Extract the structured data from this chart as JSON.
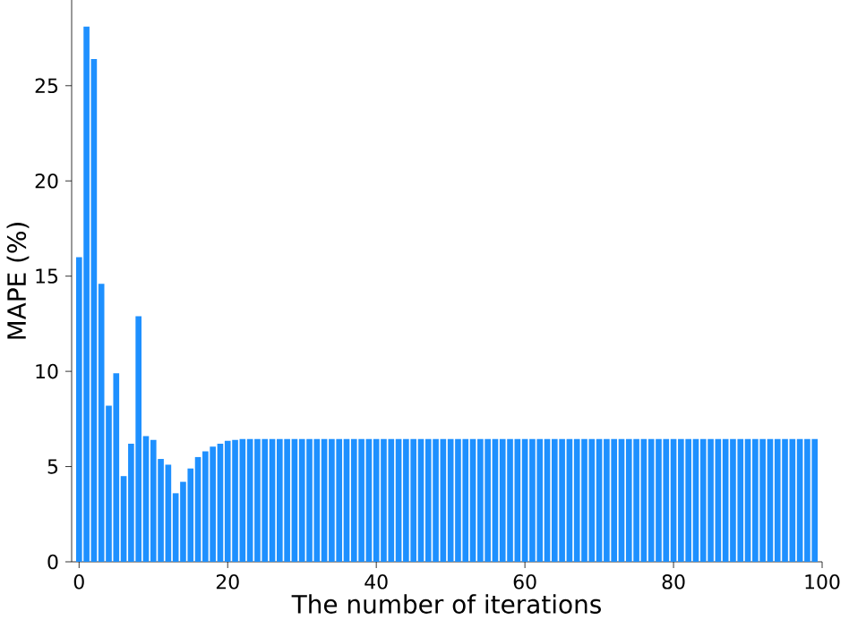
{
  "chart_data": {
    "type": "bar",
    "xlabel": "The number of iterations",
    "ylabel": "MAPE (%)",
    "color": "#1e90ff",
    "x": [
      0,
      1,
      2,
      3,
      4,
      5,
      6,
      7,
      8,
      9,
      10,
      11,
      12,
      13,
      14,
      15,
      16,
      17,
      18,
      19,
      20,
      21,
      22,
      23,
      24,
      25,
      26,
      27,
      28,
      29,
      30,
      31,
      32,
      33,
      34,
      35,
      36,
      37,
      38,
      39,
      40,
      41,
      42,
      43,
      44,
      45,
      46,
      47,
      48,
      49,
      50,
      51,
      52,
      53,
      54,
      55,
      56,
      57,
      58,
      59,
      60,
      61,
      62,
      63,
      64,
      65,
      66,
      67,
      68,
      69,
      70,
      71,
      72,
      73,
      74,
      75,
      76,
      77,
      78,
      79,
      80,
      81,
      82,
      83,
      84,
      85,
      86,
      87,
      88,
      89,
      90,
      91,
      92,
      93,
      94,
      95,
      96,
      97,
      98,
      99
    ],
    "values": [
      16.0,
      28.1,
      26.4,
      14.6,
      8.2,
      9.9,
      4.5,
      6.2,
      12.9,
      6.6,
      6.4,
      5.4,
      5.1,
      3.6,
      4.2,
      4.9,
      5.5,
      5.8,
      6.05,
      6.2,
      6.35,
      6.4,
      6.45,
      6.45,
      6.45,
      6.45,
      6.45,
      6.45,
      6.45,
      6.45,
      6.45,
      6.45,
      6.45,
      6.45,
      6.45,
      6.45,
      6.45,
      6.45,
      6.45,
      6.45,
      6.45,
      6.45,
      6.45,
      6.45,
      6.45,
      6.45,
      6.45,
      6.45,
      6.45,
      6.45,
      6.45,
      6.45,
      6.45,
      6.45,
      6.45,
      6.45,
      6.45,
      6.45,
      6.45,
      6.45,
      6.45,
      6.45,
      6.45,
      6.45,
      6.45,
      6.45,
      6.45,
      6.45,
      6.45,
      6.45,
      6.45,
      6.45,
      6.45,
      6.45,
      6.45,
      6.45,
      6.45,
      6.45,
      6.45,
      6.45,
      6.45,
      6.45,
      6.45,
      6.45,
      6.45,
      6.45,
      6.45,
      6.45,
      6.45,
      6.45,
      6.45,
      6.45,
      6.45,
      6.45,
      6.45,
      6.45,
      6.45,
      6.45,
      6.45,
      6.45
    ],
    "xlim": [
      -1,
      100
    ],
    "ylim": [
      0,
      29.5
    ],
    "xticks": [
      0,
      20,
      40,
      60,
      80,
      100
    ],
    "yticks": [
      0,
      5,
      10,
      15,
      20,
      25
    ]
  }
}
